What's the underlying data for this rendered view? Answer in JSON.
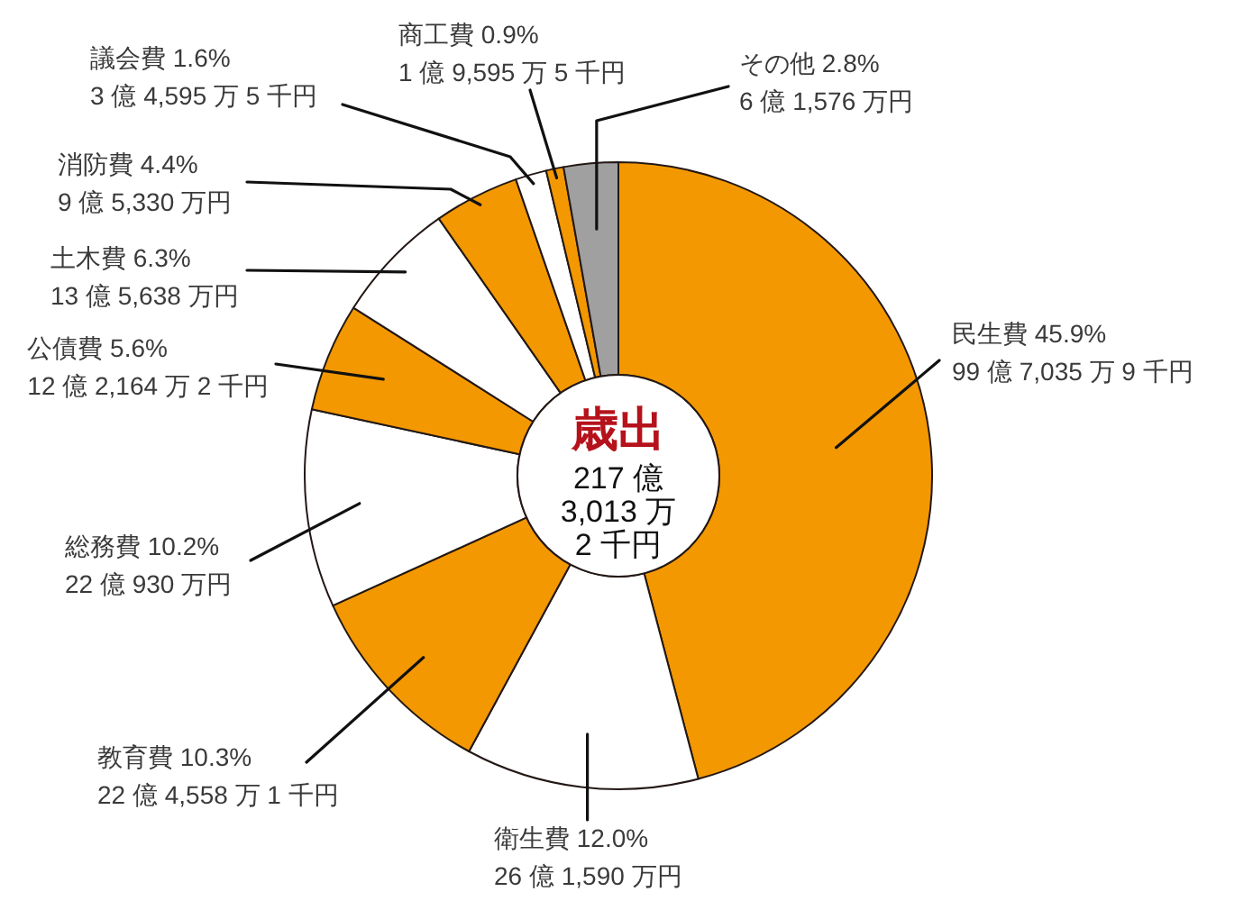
{
  "chart_data": {
    "type": "donut",
    "title": "歳出",
    "subtitle": "217 億\n3,013 万\n2 千円",
    "categories": [
      "民生費",
      "衛生費",
      "教育費",
      "総務費",
      "公債費",
      "土木費",
      "消防費",
      "議会費",
      "商工費",
      "その他"
    ],
    "values": [
      45.9,
      12.0,
      10.3,
      10.2,
      5.6,
      6.3,
      4.4,
      1.6,
      0.9,
      2.8
    ],
    "colors": [
      "#f39800",
      "#ffffff",
      "#f39800",
      "#ffffff",
      "#f39800",
      "#ffffff",
      "#f39800",
      "#ffffff",
      "#f39800",
      "#a0a0a0"
    ],
    "value_labels": [
      "45.9%\n99 億 7,035 万 9 千円",
      "12.0%\n26 億 1,590 万円",
      "10.3%\n22 億 4,558 万 1 千円",
      "10.2%\n22 億 930 万円",
      "5.6%\n12 億 2,164 万 2 千円",
      "6.3%\n13 億 5,638 万円",
      "4.4%\n9 億 5,330 万円",
      "1.6%\n3 億 4,595 万 5 千円",
      "0.9%\n1 億 9,595 万 5 千円",
      "2.8%\n6 億 1,576 万円"
    ]
  }
}
